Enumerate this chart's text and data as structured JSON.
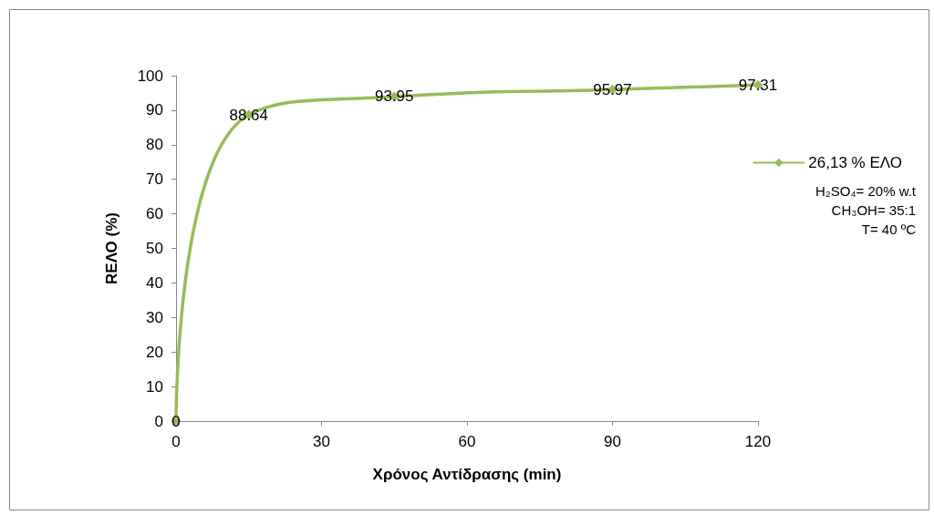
{
  "chart_data": {
    "type": "line",
    "xlabel": "Χρόνος Αντίδρασης (min)",
    "ylabel": "RΕΛΟ (%)",
    "x": [
      0,
      15,
      45,
      90,
      120
    ],
    "series": [
      {
        "name": "26,13 % ΕΛΟ",
        "color": "#9bbb59",
        "values": [
          0,
          88.64,
          93.95,
          95.97,
          97.31
        ]
      }
    ],
    "xlim": [
      0,
      120
    ],
    "xticks": [
      0,
      30,
      60,
      90,
      120
    ],
    "ylim": [
      0,
      100
    ],
    "yticks": [
      0,
      10,
      20,
      30,
      40,
      50,
      60,
      70,
      80,
      90,
      100
    ],
    "annotations": [
      "H₂SO₄= 20% w.t",
      "CH₃OH= 35:1",
      "T= 40 ºC"
    ],
    "data_labels": true,
    "marker": "diamond",
    "line_style": "solid",
    "grid": false,
    "legend": "right"
  }
}
